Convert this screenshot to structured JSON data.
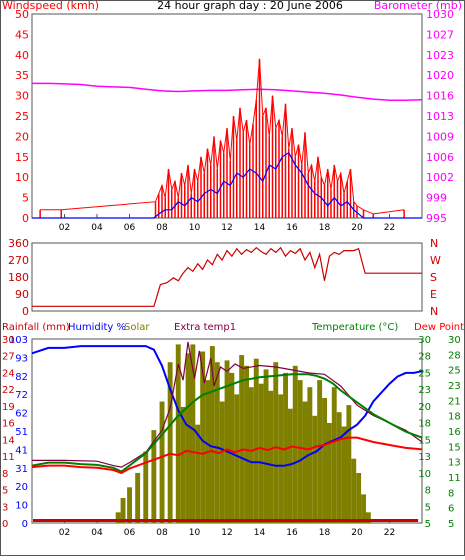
{
  "colors": {
    "frame": "#555555",
    "windspeed": "#ff0000",
    "wind_avg": "#0000ff",
    "barometer": "#ff00ff",
    "direction": "#cc0000",
    "rainfall": "#cc0000",
    "humidity": "#0000ff",
    "solar": "#808000",
    "extra_temp": "#800040",
    "temperature": "#008000",
    "dew_point": "#ff0000"
  },
  "chart_data": [
    {
      "type": "line",
      "title": "24 hour graph day : 20 June 2006",
      "ylabel": "Windspeed (kmh)",
      "y2label": "Barometer (mb)",
      "ylim": [
        0,
        50
      ],
      "y2lim": [
        995,
        1030
      ],
      "yticks": [
        "0",
        "5",
        "10",
        "15",
        "20",
        "25",
        "30",
        "35",
        "40",
        "45",
        "50"
      ],
      "y2ticks": [
        "995",
        "999",
        "1002",
        "1006",
        "1009",
        "1013",
        "1016",
        "1020",
        "1023",
        "1027",
        "1030"
      ],
      "xlim": [
        0,
        24
      ],
      "xticks": [
        "02",
        "04",
        "06",
        "08",
        "10",
        "12",
        "14",
        "16",
        "18",
        "20",
        "22"
      ],
      "series": [
        {
          "name": "Windspeed (kmh)",
          "color": "#ff0000",
          "style": "gust",
          "x": [
            0.5,
            1.8,
            7.6,
            7.8,
            8.0,
            8.2,
            8.4,
            8.6,
            8.8,
            9.0,
            9.2,
            9.4,
            9.6,
            9.8,
            10.0,
            10.2,
            10.4,
            10.6,
            10.8,
            11.0,
            11.2,
            11.4,
            11.6,
            11.8,
            12.0,
            12.2,
            12.4,
            12.6,
            12.8,
            13.0,
            13.2,
            13.4,
            13.6,
            13.8,
            14.0,
            14.2,
            14.4,
            14.6,
            14.8,
            15.0,
            15.2,
            15.4,
            15.6,
            15.8,
            16.0,
            16.2,
            16.4,
            16.6,
            16.8,
            17.0,
            17.2,
            17.4,
            17.6,
            17.8,
            18.0,
            18.2,
            18.4,
            18.6,
            18.8,
            19.0,
            19.2,
            19.4,
            19.6,
            19.8,
            20.0,
            20.4,
            21.0,
            22.9
          ],
          "values": [
            2,
            2,
            4,
            6,
            8,
            5,
            12,
            7,
            9,
            5,
            11,
            8,
            13,
            6,
            12,
            9,
            15,
            11,
            17,
            13,
            20,
            12,
            19,
            16,
            22,
            14,
            25,
            19,
            27,
            21,
            24,
            18,
            23,
            29,
            39,
            25,
            27,
            20,
            30,
            22,
            24,
            20,
            28,
            17,
            22,
            15,
            18,
            13,
            21,
            11,
            13,
            9,
            15,
            10,
            8,
            12,
            7,
            13,
            9,
            11,
            6,
            9,
            12,
            4,
            3,
            2,
            1,
            2
          ]
        },
        {
          "name": "Wind average",
          "color": "#0000ff",
          "x": [
            0,
            7.5,
            7.8,
            8.2,
            8.6,
            9.0,
            9.4,
            9.8,
            10.2,
            10.6,
            11.0,
            11.4,
            11.8,
            12.2,
            12.6,
            13.0,
            13.4,
            13.8,
            14.2,
            14.6,
            15.0,
            15.4,
            15.8,
            16.2,
            16.6,
            17.0,
            17.4,
            17.8,
            18.2,
            18.6,
            19.0,
            19.4,
            19.8,
            20.1,
            20.4,
            24
          ],
          "values": [
            0,
            0,
            1,
            2,
            2,
            4,
            3,
            5,
            4,
            6,
            7,
            6,
            9,
            8,
            11,
            10,
            12,
            11,
            9,
            13,
            12,
            15,
            16,
            13,
            11,
            8,
            6,
            5,
            3,
            5,
            3,
            4,
            2,
            1,
            0,
            0
          ]
        },
        {
          "name": "Barometer (mb)",
          "color": "#ff00ff",
          "axis": "right",
          "x": [
            0,
            1,
            2,
            3,
            4,
            5,
            6,
            7,
            8,
            9,
            10,
            11,
            12,
            13,
            14,
            15,
            16,
            17,
            18,
            19,
            20,
            21,
            22,
            23,
            24
          ],
          "values": [
            1018.1,
            1018.1,
            1018.0,
            1017.9,
            1017.6,
            1017.5,
            1017.4,
            1017.1,
            1016.8,
            1016.7,
            1016.8,
            1016.9,
            1016.9,
            1017.0,
            1017.1,
            1017.0,
            1016.8,
            1016.6,
            1016.4,
            1016.1,
            1015.7,
            1015.4,
            1015.2,
            1015.2,
            1015.3
          ]
        }
      ]
    },
    {
      "type": "line",
      "title": "",
      "ylim": [
        0,
        360
      ],
      "yticks": [
        "0",
        "90",
        "180",
        "270",
        "360"
      ],
      "y2ticks": [
        "N",
        "E",
        "S",
        "W",
        "N"
      ],
      "xlim": [
        0,
        24
      ],
      "series": [
        {
          "name": "",
          "color": "#cc0000",
          "x": [
            0,
            7.5,
            7.9,
            8.3,
            8.7,
            9.0,
            9.3,
            9.6,
            9.9,
            10.2,
            10.5,
            10.8,
            11.1,
            11.4,
            11.7,
            12.0,
            12.3,
            12.6,
            12.9,
            13.2,
            13.5,
            13.8,
            14.1,
            14.4,
            14.7,
            15.0,
            15.3,
            15.6,
            15.9,
            16.2,
            16.5,
            16.8,
            17.1,
            17.4,
            17.7,
            18.0,
            18.3,
            18.6,
            18.9,
            19.2,
            19.5,
            19.8,
            20.1,
            20.5,
            24
          ],
          "values": [
            25,
            25,
            140,
            150,
            175,
            160,
            200,
            230,
            210,
            250,
            220,
            270,
            245,
            300,
            270,
            320,
            290,
            330,
            300,
            325,
            310,
            335,
            315,
            300,
            330,
            310,
            335,
            290,
            320,
            305,
            330,
            270,
            310,
            230,
            300,
            160,
            290,
            310,
            300,
            320,
            320,
            320,
            330,
            200,
            200
          ]
        }
      ]
    },
    {
      "type": "line",
      "title": "",
      "legend": [
        "Rainfall (mm)",
        "Humidity %",
        "Solar",
        "Extra temp1",
        "Temperature (°C)",
        "Dew Point"
      ],
      "ylim": [
        0,
        103
      ],
      "yticks": [
        "0",
        "10",
        "20",
        "31",
        "41",
        "51",
        "62",
        "72",
        "82",
        "93",
        "103"
      ],
      "y_rain_ticks": [
        "0",
        "3",
        "5",
        "8",
        "11",
        "14",
        "16",
        "19",
        "22",
        "24",
        "27",
        "30"
      ],
      "y2lim": [
        5,
        30
      ],
      "y2ticks": [
        "5",
        "5",
        "8",
        "10",
        "13",
        "15",
        "18",
        "20",
        "23",
        "25",
        "28",
        "30"
      ],
      "y3ticks": [
        "5",
        "6",
        "8",
        "11",
        "13",
        "15",
        "16",
        "18",
        "21",
        "23",
        "25",
        "28",
        "30"
      ],
      "xlim": [
        0,
        24
      ],
      "series": [
        {
          "name": "Solar",
          "color": "#808000",
          "style": "bars",
          "x": [
            5.3,
            5.6,
            6.0,
            6.5,
            7.0,
            7.5,
            8.0,
            8.5,
            9.0,
            9.3,
            9.6,
            9.9,
            10.2,
            10.5,
            10.8,
            11.1,
            11.4,
            11.7,
            12.0,
            12.3,
            12.6,
            12.9,
            13.2,
            13.5,
            13.8,
            14.1,
            14.4,
            14.7,
            15.0,
            15.3,
            15.6,
            15.9,
            16.2,
            16.5,
            16.8,
            17.1,
            17.4,
            17.7,
            18.0,
            18.3,
            18.6,
            18.9,
            19.2,
            19.5,
            19.8,
            20.1,
            20.4,
            20.7,
            21.0
          ],
          "values": [
            6,
            14,
            20,
            28,
            40,
            52,
            68,
            90,
            100,
            65,
            95,
            100,
            55,
            96,
            80,
            99,
            90,
            68,
            91,
            84,
            72,
            94,
            88,
            76,
            92,
            78,
            86,
            74,
            90,
            72,
            84,
            64,
            88,
            80,
            68,
            76,
            60,
            80,
            70,
            56,
            76,
            62,
            54,
            66,
            36,
            28,
            16,
            6,
            0
          ]
        },
        {
          "name": "Humidity %",
          "color": "#0000ff",
          "x": [
            0,
            1,
            2,
            3,
            4,
            5,
            6,
            7,
            7.5,
            8,
            8.5,
            9,
            9.5,
            10,
            10.5,
            11,
            11.5,
            12,
            12.5,
            13,
            13.5,
            14,
            14.5,
            15,
            15.5,
            16,
            16.5,
            17,
            17.5,
            18,
            18.5,
            19,
            19.5,
            20,
            20.5,
            21,
            21.5,
            22,
            22.5,
            23,
            23.5,
            24
          ],
          "values": [
            95,
            98,
            98,
            99,
            99,
            99,
            99,
            99,
            97,
            88,
            75,
            63,
            55,
            52,
            46,
            43,
            42,
            40,
            38,
            36,
            34,
            34,
            33,
            32,
            32,
            33,
            35,
            38,
            40,
            44,
            46,
            48,
            52,
            55,
            60,
            68,
            73,
            78,
            82,
            84,
            84,
            85
          ]
        },
        {
          "name": "Temperature (°C)",
          "color": "#008000",
          "axis": "right",
          "x": [
            0,
            1,
            2,
            3,
            4,
            5,
            5.5,
            6,
            7,
            8,
            9,
            10,
            10.5,
            11,
            12,
            13,
            14,
            15,
            16,
            17,
            17.5,
            18,
            18.5,
            19,
            20,
            21,
            22,
            23,
            24
          ],
          "values": [
            12.8,
            13.2,
            13.2,
            13.0,
            12.9,
            12.5,
            12.0,
            12.8,
            14.5,
            17.0,
            19.6,
            21.6,
            22.4,
            22.8,
            23.6,
            24.4,
            24.8,
            25.0,
            25.2,
            25.2,
            25.0,
            24.6,
            24.0,
            23.0,
            21.4,
            19.8,
            18.6,
            17.4,
            16.6
          ]
        },
        {
          "name": "Extra temp1",
          "color": "#800040",
          "axis": "right",
          "x": [
            0,
            2,
            4,
            5,
            5.5,
            6,
            7,
            8,
            8.5,
            9,
            9.3,
            9.6,
            10,
            10.3,
            10.6,
            11,
            11.2,
            11.6,
            12,
            12.5,
            13,
            14,
            15,
            16,
            17,
            18,
            19,
            20,
            21,
            22,
            23,
            24
          ],
          "values": [
            13.5,
            13.5,
            13.4,
            12.8,
            12.6,
            13.2,
            14.6,
            17.6,
            20.6,
            26.6,
            24.4,
            29.6,
            24.6,
            28.4,
            24.0,
            27.4,
            23.6,
            26.2,
            25.6,
            26.6,
            26.0,
            26.4,
            26.2,
            25.8,
            25.4,
            25.2,
            23.6,
            21.0,
            19.6,
            18.6,
            17.6,
            16.0
          ]
        },
        {
          "name": "Dew Point",
          "color": "#ff0000",
          "axis": "right",
          "x": [
            0,
            1,
            2,
            3,
            4,
            5,
            5.5,
            6,
            7,
            7.5,
            8,
            8.5,
            9,
            9.5,
            10,
            10.5,
            11,
            11.5,
            12,
            12.5,
            13,
            13.5,
            14,
            14.5,
            15,
            15.5,
            16,
            16.5,
            17,
            17.5,
            18,
            18.5,
            19,
            19.5,
            20,
            21,
            22,
            23,
            24
          ],
          "values": [
            12.6,
            12.8,
            12.8,
            12.6,
            12.5,
            12.2,
            11.8,
            12.4,
            13.2,
            13.6,
            14.0,
            14.4,
            14.2,
            14.8,
            14.6,
            14.4,
            14.8,
            14.5,
            15.0,
            14.6,
            15.0,
            14.8,
            15.2,
            14.9,
            15.3,
            15.0,
            15.4,
            15.2,
            15.0,
            15.4,
            15.6,
            16.0,
            16.4,
            16.6,
            16.6,
            16.0,
            15.6,
            15.2,
            15.0
          ]
        },
        {
          "name": "Rainfall (mm)",
          "color": "#cc0000",
          "style": "bars",
          "x": [
            0,
            24
          ],
          "values": [
            0,
            0
          ]
        }
      ]
    }
  ]
}
